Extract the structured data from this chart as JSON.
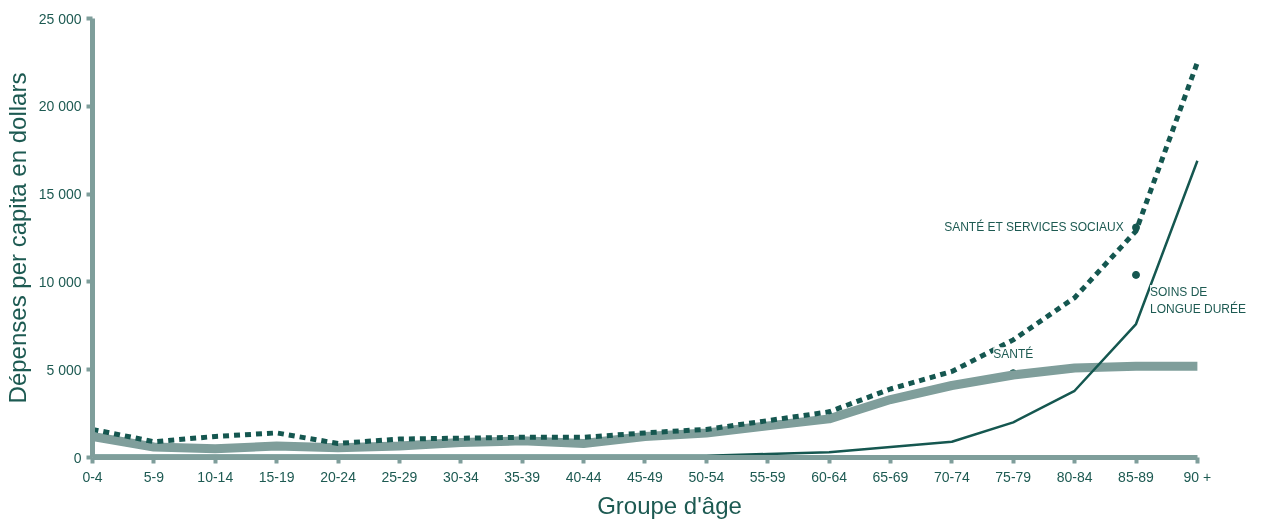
{
  "chart_data": {
    "type": "line",
    "xlabel": "Groupe d'âge",
    "ylabel": "Dépenses per capita en dollars",
    "categories": [
      "0-4",
      "5-9",
      "10-14",
      "15-19",
      "20-24",
      "25-29",
      "30-34",
      "35-39",
      "40-44",
      "45-49",
      "50-54",
      "55-59",
      "60-64",
      "65-69",
      "70-74",
      "75-79",
      "80-84",
      "85-89",
      "90 +"
    ],
    "series": [
      {
        "color": "#7f9e9b",
        "line_style": "solid",
        "values": [
          1200,
          600,
          500,
          650,
          550,
          650,
          850,
          950,
          800,
          1200,
          1400,
          1800,
          2200,
          3300,
          4100,
          4700,
          5100,
          5200,
          5200
        ]
      },
      {
        "color": "#155750",
        "line_style": "dashed",
        "values": [
          1600,
          900,
          1200,
          1400,
          800,
          1050,
          1100,
          1150,
          1150,
          1400,
          1600,
          2100,
          2600,
          3900,
          4900,
          6700,
          9100,
          12900,
          22500
        ]
      },
      {
        "color": "#155750",
        "line_style": "solid",
        "values": [
          100,
          100,
          100,
          100,
          100,
          100,
          100,
          100,
          100,
          100,
          100,
          200,
          300,
          600,
          900,
          2000,
          3800,
          7600,
          16900
        ]
      }
    ],
    "ylim": [
      0,
      25000
    ],
    "yticks": [
      {
        "value": 0,
        "label": "0"
      },
      {
        "value": 5000,
        "label": "5 000"
      },
      {
        "value": 10000,
        "label": "10 000"
      },
      {
        "value": 15000,
        "label": "15 000"
      },
      {
        "value": 20000,
        "label": "20 000"
      },
      {
        "value": 25000,
        "label": "25 000"
      }
    ],
    "annotations": [
      {
        "text": "SANTÉ ET SERVICES SOCIAUX",
        "x": "85-89",
        "y": 13100
      },
      {
        "text": "SOINS DE\nLONGUE DURÉE",
        "x": "85-89",
        "y": 10400
      },
      {
        "text": "SANTÉ",
        "x": "75-79",
        "y": 4800
      }
    ],
    "grid": false
  }
}
